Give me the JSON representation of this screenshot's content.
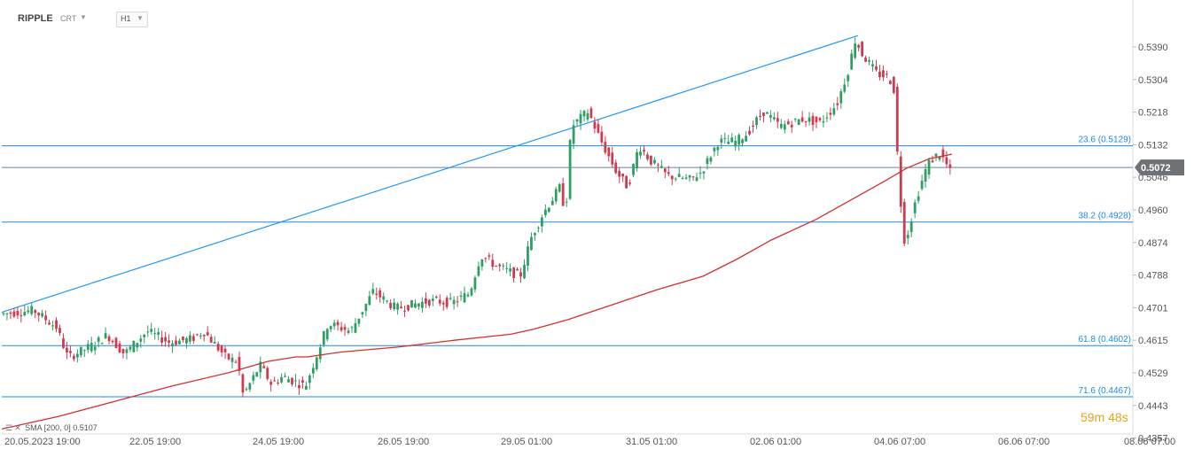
{
  "header": {
    "symbol": "RIPPLE",
    "chart_type": "CRT",
    "timeframe": "H1"
  },
  "indicator": {
    "name": "SMA",
    "params": "[200, 0]",
    "value": "0.5107"
  },
  "timer": {
    "minutes": "59",
    "m_unit": "m",
    "seconds": "48",
    "s_unit": "s"
  },
  "colors": {
    "up": "#2e9e63",
    "down": "#d13a4e",
    "sma": "#d32f2f",
    "trendline": "#2196f3",
    "fib": "#1e88e5",
    "price_tag_bg": "#6e7175",
    "timer": "#e6a31b"
  },
  "chart_data": {
    "type": "candlestick",
    "price_axis": [
      "0.5390",
      "0.5304",
      "0.5218",
      "0.5132",
      "0.5046",
      "0.4960",
      "0.4874",
      "0.4788",
      "0.4701",
      "0.4615",
      "0.4529",
      "0.4443",
      "0.4357"
    ],
    "time_axis": [
      "20.05.2023  19:00",
      "22.05  19:00",
      "24.05  19:00",
      "26.05  19:00",
      "29.05  01:00",
      "31.05  01:00",
      "02.06  01:00",
      "04.06  07:00",
      "06.06  07:00",
      "08.06  07:00"
    ],
    "current_price": "0.5072",
    "fib_levels": [
      {
        "label": "23.6 (0.5129)",
        "value": 0.5129
      },
      {
        "label": "38.2 (0.4928)",
        "value": 0.4928
      },
      {
        "label": "61.8 (0.4602)",
        "value": 0.4602
      },
      {
        "label": "71.6 (0.4467)",
        "value": 0.4467
      }
    ],
    "trendline": [
      {
        "x": 0,
        "y": 0.469
      },
      {
        "x": 0.757,
        "y": 0.542
      }
    ],
    "sma_200": [
      [
        0.0,
        0.4382
      ],
      [
        0.05,
        0.4415
      ],
      [
        0.1,
        0.4455
      ],
      [
        0.15,
        0.4495
      ],
      [
        0.2,
        0.453
      ],
      [
        0.235,
        0.456
      ],
      [
        0.26,
        0.4572
      ],
      [
        0.27,
        0.4572
      ],
      [
        0.3,
        0.4585
      ],
      [
        0.35,
        0.4598
      ],
      [
        0.4,
        0.4616
      ],
      [
        0.45,
        0.4632
      ],
      [
        0.47,
        0.4645
      ],
      [
        0.5,
        0.467
      ],
      [
        0.54,
        0.471
      ],
      [
        0.58,
        0.475
      ],
      [
        0.62,
        0.4785
      ],
      [
        0.65,
        0.483
      ],
      [
        0.68,
        0.488
      ],
      [
        0.72,
        0.4935
      ],
      [
        0.75,
        0.4985
      ],
      [
        0.78,
        0.5035
      ],
      [
        0.8,
        0.507
      ],
      [
        0.82,
        0.5095
      ],
      [
        0.84,
        0.5107
      ]
    ],
    "price_path": [
      [
        0.0,
        0.4685
      ],
      [
        0.03,
        0.4695
      ],
      [
        0.05,
        0.465
      ],
      [
        0.06,
        0.457
      ],
      [
        0.08,
        0.46
      ],
      [
        0.095,
        0.463
      ],
      [
        0.11,
        0.458
      ],
      [
        0.13,
        0.464
      ],
      [
        0.15,
        0.461
      ],
      [
        0.17,
        0.462
      ],
      [
        0.18,
        0.464
      ],
      [
        0.2,
        0.457
      ],
      [
        0.21,
        0.456
      ],
      [
        0.215,
        0.447
      ],
      [
        0.23,
        0.455
      ],
      [
        0.24,
        0.45
      ],
      [
        0.25,
        0.452
      ],
      [
        0.27,
        0.4495
      ],
      [
        0.29,
        0.466
      ],
      [
        0.31,
        0.464
      ],
      [
        0.33,
        0.4745
      ],
      [
        0.35,
        0.47
      ],
      [
        0.38,
        0.472
      ],
      [
        0.4,
        0.4715
      ],
      [
        0.415,
        0.474
      ],
      [
        0.425,
        0.484
      ],
      [
        0.44,
        0.481
      ],
      [
        0.46,
        0.4785
      ],
      [
        0.47,
        0.489
      ],
      [
        0.48,
        0.495
      ],
      [
        0.495,
        0.502
      ],
      [
        0.5,
        0.495
      ],
      [
        0.505,
        0.518
      ],
      [
        0.52,
        0.522
      ],
      [
        0.53,
        0.515
      ],
      [
        0.545,
        0.506
      ],
      [
        0.555,
        0.502
      ],
      [
        0.565,
        0.513
      ],
      [
        0.575,
        0.509
      ],
      [
        0.59,
        0.505
      ],
      [
        0.61,
        0.504
      ],
      [
        0.62,
        0.506
      ],
      [
        0.635,
        0.514
      ],
      [
        0.65,
        0.514
      ],
      [
        0.66,
        0.516
      ],
      [
        0.675,
        0.522
      ],
      [
        0.69,
        0.518
      ],
      [
        0.71,
        0.52
      ],
      [
        0.725,
        0.519
      ],
      [
        0.74,
        0.524
      ],
      [
        0.75,
        0.533
      ],
      [
        0.757,
        0.542
      ],
      [
        0.76,
        0.538
      ],
      [
        0.775,
        0.532
      ],
      [
        0.785,
        0.531
      ],
      [
        0.79,
        0.529
      ],
      [
        0.795,
        0.502
      ],
      [
        0.8,
        0.487
      ],
      [
        0.81,
        0.499
      ],
      [
        0.82,
        0.508
      ],
      [
        0.83,
        0.511
      ],
      [
        0.835,
        0.509
      ],
      [
        0.84,
        0.506
      ]
    ]
  }
}
